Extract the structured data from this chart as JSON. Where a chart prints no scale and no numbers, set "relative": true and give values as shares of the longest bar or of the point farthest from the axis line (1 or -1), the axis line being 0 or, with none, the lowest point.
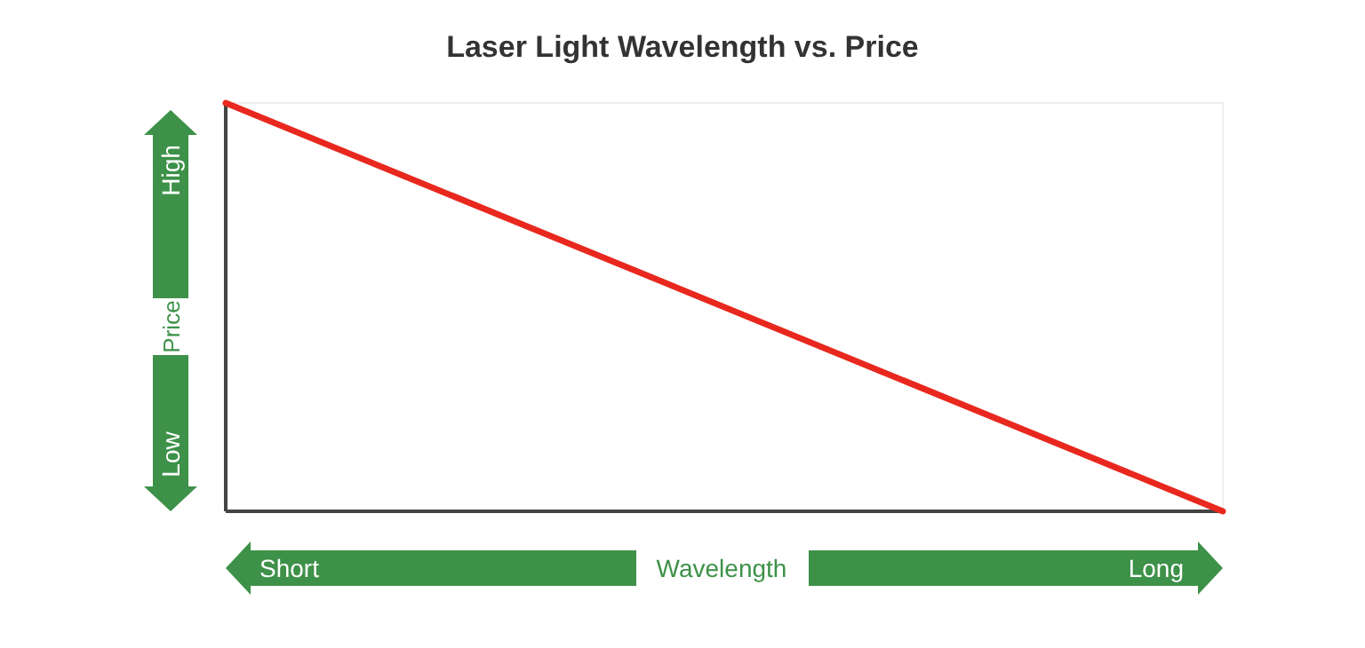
{
  "chart_data": {
    "type": "line",
    "title": "Laser Light Wavelength vs. Price",
    "xlabel": "Wavelength",
    "ylabel": "Price",
    "categories": [
      null,
      null
    ],
    "values": [
      1,
      0
    ],
    "color": "#e8281e",
    "relative": true,
    "annotations": [
      "High",
      "Low",
      "Short",
      "Long"
    ]
  }
}
